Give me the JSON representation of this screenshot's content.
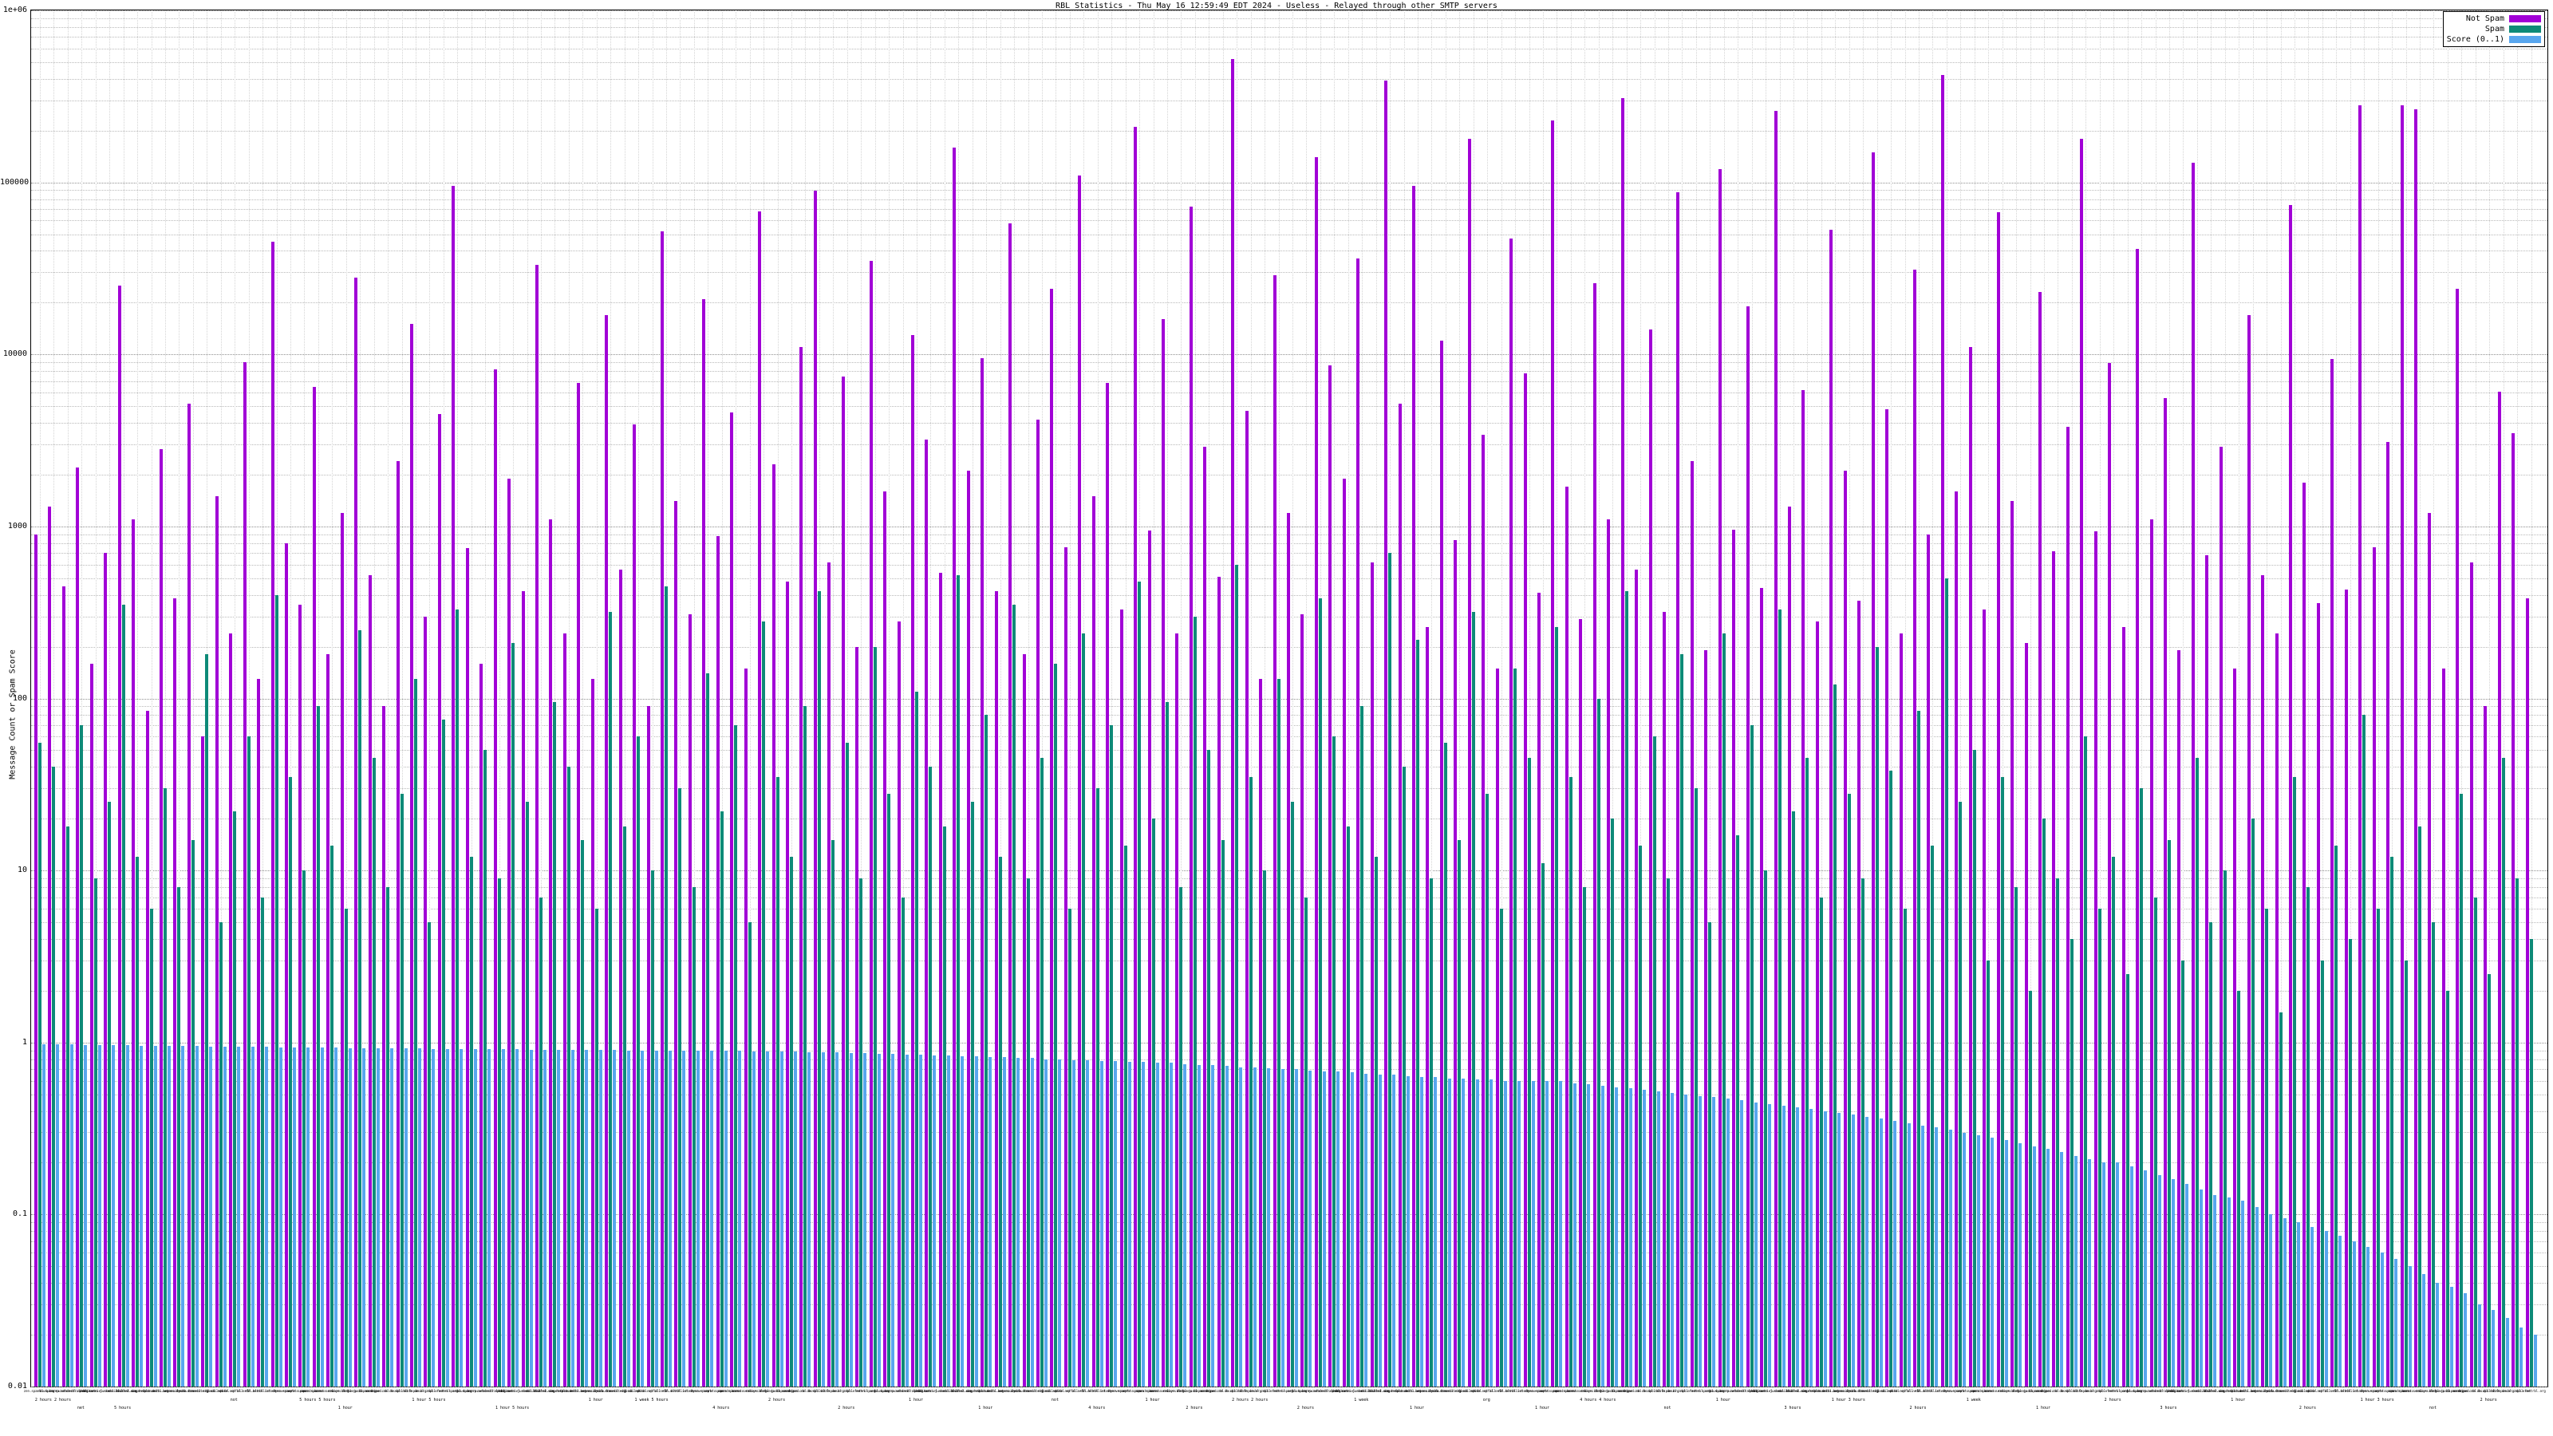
{
  "title": "RBL Statistics - Thu May 16 12:59:49 EDT 2024 - Useless - Relayed through other SMTP servers",
  "y_axis": {
    "title": "Message Count or Spam Score",
    "tick_labels": [
      "1e+06",
      "100000",
      "10000",
      "1000",
      "100",
      "10",
      "1",
      "0.1",
      "0.01"
    ],
    "tick_values": [
      1000000,
      100000,
      10000,
      1000,
      100,
      10,
      1,
      0.1,
      0.01
    ]
  },
  "legend": [
    {
      "label": "Not Spam",
      "color": "#a100d6"
    },
    {
      "label": "Spam",
      "color": "#0e8a78"
    },
    {
      "label": "Score (0..1)",
      "color": "#58a6ee"
    }
  ],
  "chart_data": {
    "type": "bar",
    "title": "RBL Statistics - Thu May 16 12:59:49 EDT 2024 - Useless - Relayed through other SMTP servers",
    "xlabel": "",
    "ylabel": "Message Count or Spam Score",
    "ylog": true,
    "ylim": [
      0.01,
      1000000
    ],
    "grid": true,
    "legend_position": "top-right",
    "label_pool": [
      "zen.spamhaus.org",
      "bl.spamcop.net",
      "b.barracudacentral.org",
      "dnsbl.sorbs.net",
      "psbl.surriel.com",
      "hostkarma.junkemailfilter.com",
      "cbl.abuseat.org",
      "dnsbl-1.uceprotect.net",
      "ix.dnsbl.manitu.net",
      "spam.dnsbl.anonmails.de",
      "bogons.cymru.com",
      "dnsbl.dronebl.org",
      "truncate.gbudb.net",
      "bl.mailspike.net",
      "dnsbl.spfbl.net",
      "all.s5h.net",
      "bl.blocklist.de",
      "rbl.interserver.net",
      "dyna.spamrats.com",
      "noptr.spamrats.com",
      "spam.spamrats.com",
      "korea.services.net",
      "relays.bl.gweep.ca",
      "dnsbl.justspam.org",
      "bl.nordspam.com",
      "combined.rbl.msrbl.net",
      "db.wpbl.info",
      "bl.0spam.org",
      "dnsbl.zapbl.net",
      "rbl.efnetrbl.org"
    ],
    "series": [
      {
        "name": "Not Spam",
        "color": "#a100d6",
        "values": [
          900,
          1300,
          450,
          2200,
          160,
          700,
          25000,
          1100,
          85,
          2800,
          380,
          5200,
          60,
          1500,
          240,
          9000,
          130,
          45000,
          800,
          350,
          6500,
          180,
          1200,
          28000,
          520,
          90,
          2400,
          15000,
          300,
          4500,
          95000,
          750,
          160,
          8200,
          1900,
          420,
          33000,
          1100,
          240,
          6800,
          130,
          17000,
          560,
          3900,
          90,
          52000,
          1400,
          310,
          21000,
          880,
          4600,
          150,
          68000,
          2300,
          480,
          11000,
          90000,
          620,
          7400,
          200,
          35000,
          1600,
          280,
          13000,
          3200,
          540,
          160000,
          2100,
          9500,
          420,
          58000,
          180,
          4200,
          24000,
          760,
          110000,
          1500,
          6800,
          330,
          210000,
          950,
          16000,
          240,
          72000,
          2900,
          510,
          520000,
          4700,
          130,
          29000,
          1200,
          310,
          140000,
          8600,
          1900,
          36000,
          620,
          390000,
          5200,
          95000,
          260,
          12000,
          830,
          180000,
          3400,
          150,
          47000,
          7800,
          410,
          230000,
          1700,
          290,
          26000,
          1100,
          310000,
          560,
          14000,
          320,
          88000,
          2400,
          190,
          120000,
          960,
          19000,
          440,
          260000,
          1300,
          6200,
          280,
          53000,
          2100,
          370,
          150000,
          4800,
          240,
          31000,
          900,
          420000,
          1600,
          11000,
          330,
          67000,
          1400,
          210,
          23000,
          720,
          3800,
          180000,
          940,
          8900,
          260,
          41000,
          1100,
          5600,
          190,
          130000,
          680,
          2900,
          150,
          17000,
          520,
          240,
          74000,
          1800,
          360,
          9400,
          430,
          280000,
          760,
          3100,
          280000,
          265000,
          1200,
          150,
          24000,
          620,
          90,
          6100,
          3500,
          380
        ]
      },
      {
        "name": "Spam",
        "color": "#0e8a78",
        "values": [
          55,
          40,
          18,
          70,
          9,
          25,
          350,
          12,
          6,
          30,
          8,
          15,
          180,
          5,
          22,
          60,
          7,
          400,
          35,
          10,
          90,
          14,
          6,
          250,
          45,
          8,
          28,
          130,
          5,
          75,
          330,
          12,
          50,
          9,
          210,
          25,
          7,
          95,
          40,
          15,
          6,
          320,
          18,
          60,
          10,
          450,
          30,
          8,
          140,
          22,
          70,
          5,
          280,
          35,
          12,
          90,
          420,
          15,
          55,
          9,
          200,
          28,
          7,
          110,
          40,
          18,
          520,
          25,
          80,
          12,
          350,
          9,
          45,
          160,
          6,
          240,
          30,
          70,
          14,
          480,
          20,
          95,
          8,
          300,
          50,
          15,
          600,
          35,
          10,
          130,
          25,
          7,
          380,
          60,
          18,
          90,
          12,
          700,
          40,
          220,
          9,
          55,
          15,
          320,
          28,
          6,
          150,
          45,
          11,
          260,
          35,
          8,
          100,
          20,
          420,
          14,
          60,
          9,
          180,
          30,
          5,
          240,
          16,
          70,
          10,
          330,
          22,
          45,
          7,
          120,
          28,
          9,
          200,
          38,
          6,
          85,
          14,
          500,
          25,
          50,
          3,
          35,
          8,
          2,
          20,
          9,
          4,
          60,
          6,
          12,
          2.5,
          30,
          7,
          15,
          3,
          45,
          5,
          10,
          2,
          20,
          6,
          1.5,
          35,
          8,
          3,
          14,
          4,
          80,
          6,
          12,
          3,
          18,
          5,
          2,
          28,
          7,
          2.5,
          45,
          9,
          4
        ]
      },
      {
        "name": "Score (0..1)",
        "color": "#58a6ee",
        "values": [
          0.98,
          0.98,
          0.98,
          0.97,
          0.97,
          0.97,
          0.97,
          0.96,
          0.96,
          0.96,
          0.96,
          0.96,
          0.95,
          0.95,
          0.95,
          0.95,
          0.95,
          0.94,
          0.94,
          0.94,
          0.94,
          0.94,
          0.93,
          0.93,
          0.93,
          0.93,
          0.93,
          0.93,
          0.92,
          0.92,
          0.92,
          0.92,
          0.92,
          0.92,
          0.92,
          0.91,
          0.91,
          0.91,
          0.91,
          0.91,
          0.91,
          0.91,
          0.9,
          0.9,
          0.9,
          0.9,
          0.9,
          0.9,
          0.9,
          0.9,
          0.9,
          0.89,
          0.89,
          0.89,
          0.89,
          0.88,
          0.88,
          0.88,
          0.87,
          0.87,
          0.86,
          0.86,
          0.85,
          0.85,
          0.84,
          0.84,
          0.83,
          0.83,
          0.82,
          0.82,
          0.81,
          0.81,
          0.8,
          0.8,
          0.79,
          0.79,
          0.78,
          0.78,
          0.77,
          0.77,
          0.76,
          0.76,
          0.75,
          0.74,
          0.74,
          0.73,
          0.72,
          0.72,
          0.71,
          0.7,
          0.7,
          0.69,
          0.68,
          0.68,
          0.67,
          0.66,
          0.65,
          0.65,
          0.64,
          0.63,
          0.63,
          0.62,
          0.62,
          0.61,
          0.61,
          0.6,
          0.6,
          0.6,
          0.6,
          0.6,
          0.58,
          0.57,
          0.56,
          0.55,
          0.54,
          0.53,
          0.52,
          0.51,
          0.5,
          0.49,
          0.48,
          0.47,
          0.46,
          0.45,
          0.44,
          0.43,
          0.42,
          0.41,
          0.4,
          0.39,
          0.38,
          0.37,
          0.36,
          0.35,
          0.34,
          0.33,
          0.32,
          0.31,
          0.3,
          0.29,
          0.28,
          0.27,
          0.26,
          0.25,
          0.24,
          0.23,
          0.22,
          0.21,
          0.2,
          0.2,
          0.19,
          0.18,
          0.17,
          0.16,
          0.15,
          0.14,
          0.13,
          0.125,
          0.12,
          0.11,
          0.1,
          0.095,
          0.09,
          0.085,
          0.08,
          0.075,
          0.07,
          0.065,
          0.06,
          0.055,
          0.05,
          0.045,
          0.04,
          0.038,
          0.035,
          0.03,
          0.028,
          0.025,
          0.022,
          0.02
        ]
      }
    ],
    "footnotes": [
      {
        "i": 1,
        "row": 0,
        "text": "2 hours 2 hours"
      },
      {
        "i": 3,
        "row": 1,
        "text": "net"
      },
      {
        "i": 6,
        "row": 1,
        "text": "5 hours"
      },
      {
        "i": 14,
        "row": 0,
        "text": "not"
      },
      {
        "i": 20,
        "row": 0,
        "text": "5 hours 5 hours"
      },
      {
        "i": 22,
        "row": 1,
        "text": "1 hour"
      },
      {
        "i": 28,
        "row": 0,
        "text": "1 hour 5 hours"
      },
      {
        "i": 34,
        "row": 1,
        "text": "1 hour 5 hours"
      },
      {
        "i": 40,
        "row": 0,
        "text": "1 hour"
      },
      {
        "i": 44,
        "row": 0,
        "text": "1 week 5 hours"
      },
      {
        "i": 49,
        "row": 1,
        "text": "4 hours"
      },
      {
        "i": 53,
        "row": 0,
        "text": "2 hours"
      },
      {
        "i": 58,
        "row": 1,
        "text": "2 hours"
      },
      {
        "i": 63,
        "row": 0,
        "text": "1 hour"
      },
      {
        "i": 68,
        "row": 1,
        "text": "1 hour"
      },
      {
        "i": 73,
        "row": 0,
        "text": "not"
      },
      {
        "i": 76,
        "row": 1,
        "text": "4 hours"
      },
      {
        "i": 80,
        "row": 0,
        "text": "1 hour"
      },
      {
        "i": 83,
        "row": 1,
        "text": "2 hours"
      },
      {
        "i": 87,
        "row": 0,
        "text": "2 hours 2 hours"
      },
      {
        "i": 91,
        "row": 1,
        "text": "2 hours"
      },
      {
        "i": 95,
        "row": 0,
        "text": "1 week"
      },
      {
        "i": 99,
        "row": 1,
        "text": "1 hour"
      },
      {
        "i": 104,
        "row": 0,
        "text": "org"
      },
      {
        "i": 108,
        "row": 1,
        "text": "1 hour"
      },
      {
        "i": 112,
        "row": 0,
        "text": "4 hours 4 hours"
      },
      {
        "i": 117,
        "row": 1,
        "text": "not"
      },
      {
        "i": 121,
        "row": 0,
        "text": "1 hour"
      },
      {
        "i": 126,
        "row": 1,
        "text": "3 hours"
      },
      {
        "i": 130,
        "row": 0,
        "text": "1 hour 3 hours"
      },
      {
        "i": 135,
        "row": 1,
        "text": "2 hours"
      },
      {
        "i": 139,
        "row": 0,
        "text": "1 week"
      },
      {
        "i": 144,
        "row": 1,
        "text": "1 hour"
      },
      {
        "i": 149,
        "row": 0,
        "text": "2 hours"
      },
      {
        "i": 153,
        "row": 1,
        "text": "3 hours"
      },
      {
        "i": 158,
        "row": 0,
        "text": "1 hour"
      },
      {
        "i": 163,
        "row": 1,
        "text": "2 hours"
      },
      {
        "i": 168,
        "row": 0,
        "text": "1 hour 3 hours"
      },
      {
        "i": 172,
        "row": 1,
        "text": "not"
      },
      {
        "i": 176,
        "row": 0,
        "text": "2 hours"
      }
    ]
  }
}
